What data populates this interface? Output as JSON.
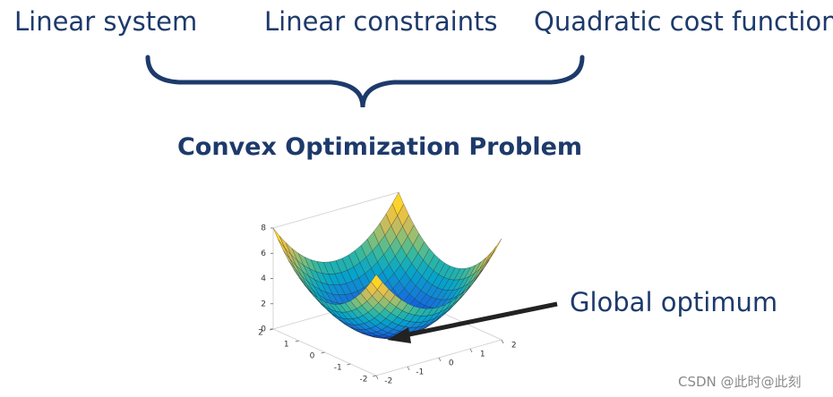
{
  "header": {
    "items": [
      "Linear system",
      "Linear constraints",
      "Quadratic cost function"
    ]
  },
  "title": "Convex Optimization Problem",
  "plot": {
    "xticks": [
      -2,
      -1,
      0,
      1,
      2
    ],
    "yticks": [
      -2,
      -1,
      0,
      1,
      2
    ],
    "zticks": [
      0,
      2,
      4,
      6,
      8
    ]
  },
  "annotation": "Global optimum",
  "watermark": "CSDN @此时@此刻"
}
